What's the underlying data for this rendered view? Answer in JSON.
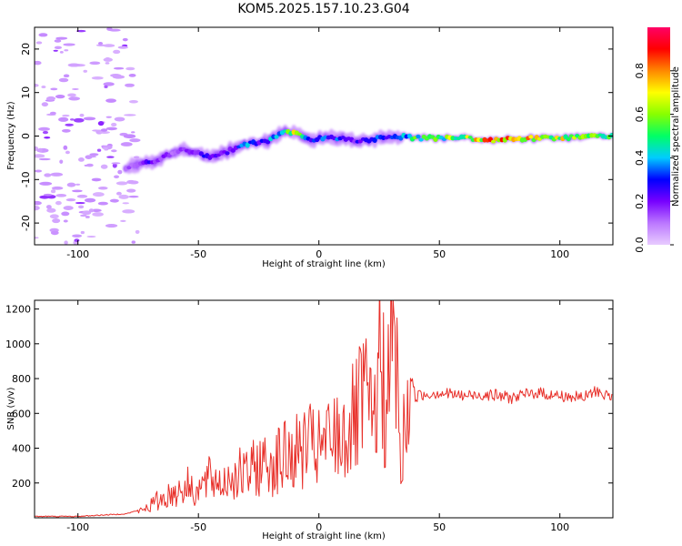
{
  "figure": {
    "title": "KOM5.2025.157.10.23.G04"
  },
  "chart_data": [
    {
      "type": "heatmap",
      "xlabel": "Height of straight line (km)",
      "ylabel": "Frequency (Hz)",
      "xlim": [
        -118,
        122
      ],
      "ylim": [
        -25,
        25
      ],
      "x_ticks": [
        -100,
        -50,
        0,
        50,
        100
      ],
      "y_ticks": [
        -20,
        -10,
        0,
        10,
        20
      ],
      "colorbar": {
        "label": "Normalized spectral amplitude",
        "range": [
          0.0,
          1.0
        ],
        "ticks": [
          "0.0",
          "0.2",
          "0.4",
          "0.6",
          "0.8"
        ],
        "colors": [
          "#e8ccff",
          "#bb77ff",
          "#7700ff",
          "#0000ff",
          "#00ccff",
          "#00ff66",
          "#88ff00",
          "#ffff00",
          "#ff8800",
          "#ff0000",
          "#ff0066"
        ]
      },
      "ridge": {
        "x": [
          -80,
          -75,
          -70,
          -65,
          -60,
          -55,
          -50,
          -45,
          -40,
          -35,
          -30,
          -25,
          -20,
          -15,
          -10,
          -5,
          0,
          5,
          10,
          15,
          20,
          25,
          30,
          35,
          40,
          50,
          60,
          70,
          80,
          90,
          100,
          110,
          120
        ],
        "freq": [
          -7.5,
          -6.5,
          -6,
          -5,
          -4,
          -3,
          -4,
          -5,
          -4,
          -3,
          -2,
          -1.5,
          -1,
          1,
          1,
          -1,
          -0.5,
          -0.5,
          -0.5,
          -1,
          -1,
          -0.5,
          -0.5,
          0,
          -0.5,
          -0.5,
          -0.5,
          -1,
          -0.8,
          -0.5,
          -0.5,
          0,
          0
        ],
        "amplitude": [
          0.15,
          0.2,
          0.25,
          0.2,
          0.15,
          0.25,
          0.2,
          0.35,
          0.2,
          0.3,
          0.4,
          0.3,
          0.45,
          0.55,
          0.7,
          0.3,
          0.35,
          0.4,
          0.3,
          0.25,
          0.3,
          0.35,
          0.3,
          0.45,
          0.55,
          0.6,
          0.75,
          0.9,
          0.85,
          0.8,
          0.75,
          0.6,
          0.7
        ]
      },
      "noise_region_x": [
        -118,
        -75
      ]
    },
    {
      "type": "line",
      "xlabel": "Height of straight line (km)",
      "ylabel": "SNR (v/v)",
      "xlim": [
        -118,
        122
      ],
      "ylim": [
        0,
        1250
      ],
      "x_ticks": [
        -100,
        -50,
        0,
        50,
        100
      ],
      "y_ticks": [
        200,
        400,
        600,
        800,
        1000,
        1200
      ],
      "color": "#e8302a",
      "series": [
        {
          "x": [
            -118,
            -100,
            -80,
            -75,
            -70,
            -65,
            -60,
            -55,
            -50,
            -45,
            -40,
            -35,
            -30,
            -25,
            -20,
            -15,
            -10,
            -5,
            0,
            5,
            10,
            15,
            18,
            20,
            22,
            24,
            26,
            28,
            30,
            32,
            34,
            36,
            38,
            40,
            50,
            60,
            70,
            80,
            90,
            100,
            110,
            115,
            122
          ],
          "y": [
            5,
            5,
            20,
            40,
            90,
            140,
            180,
            230,
            200,
            280,
            250,
            320,
            300,
            380,
            400,
            430,
            450,
            520,
            480,
            560,
            600,
            700,
            800,
            900,
            600,
            950,
            1150,
            700,
            1230,
            1200,
            300,
            750,
            820,
            700,
            720,
            700,
            710,
            690,
            720,
            700,
            690,
            730,
            690
          ]
        }
      ]
    }
  ]
}
